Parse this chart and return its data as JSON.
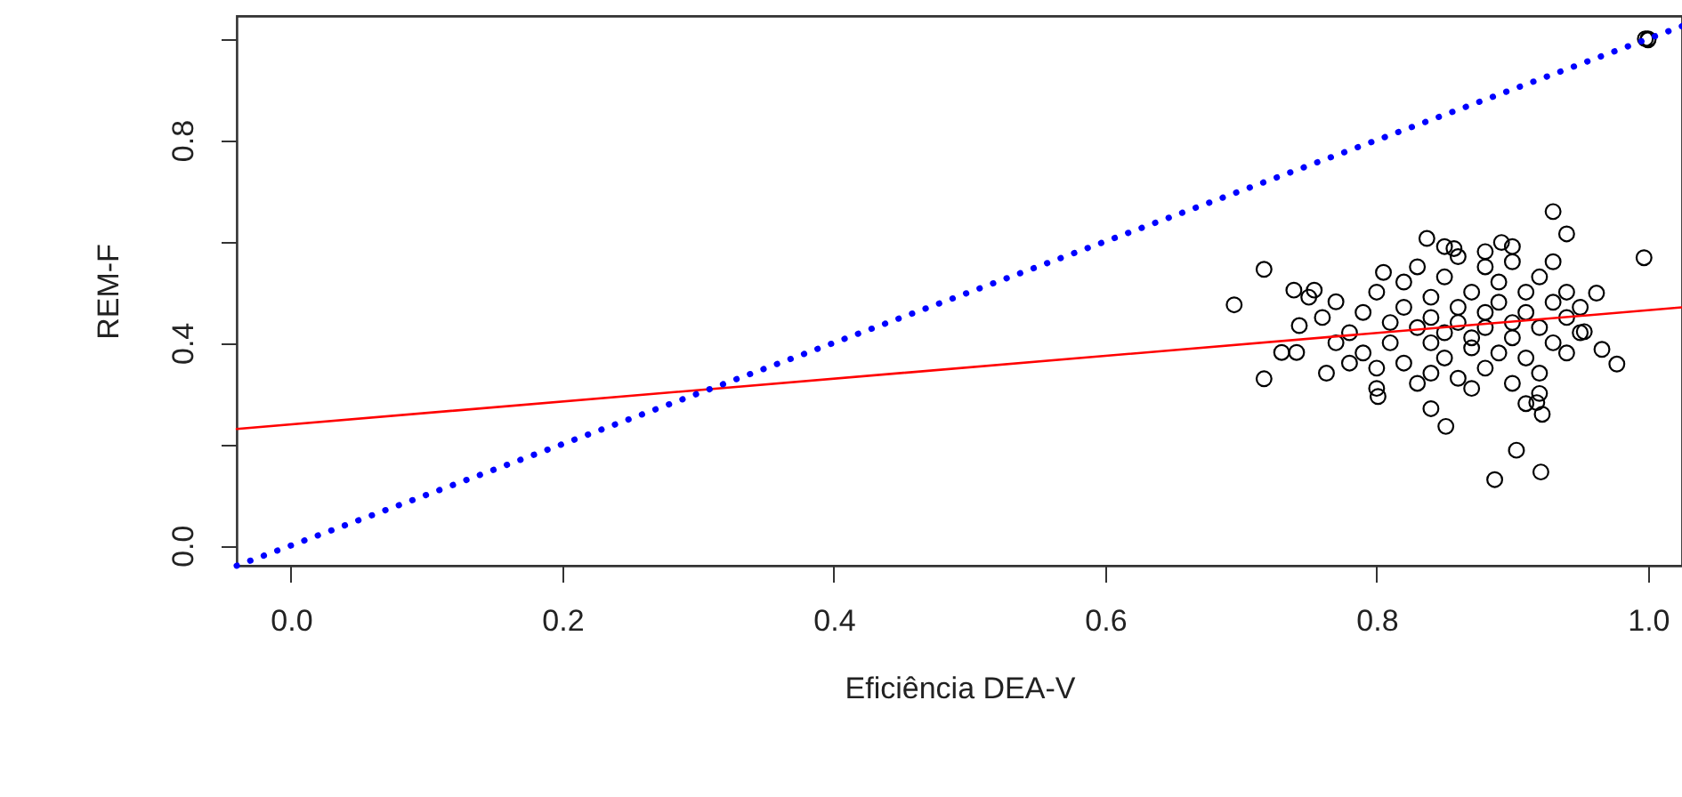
{
  "chart_data": {
    "type": "scatter",
    "xlabel": "Eficiência DEA-V",
    "ylabel": "REM-F",
    "xlim": [
      -0.04,
      1.025
    ],
    "ylim": [
      -0.04,
      1.045
    ],
    "xticks": [
      {
        "value": 0,
        "label": "0.0"
      },
      {
        "value": 0.2,
        "label": "0.2"
      },
      {
        "value": 0.4,
        "label": "0.4"
      },
      {
        "value": 0.6,
        "label": "0.6"
      },
      {
        "value": 0.8,
        "label": "0.8"
      },
      {
        "value": 1.0,
        "label": "1.0"
      }
    ],
    "yticks": [
      {
        "value": 0,
        "label": "0.0"
      },
      {
        "value": 0.2,
        "label": null
      },
      {
        "value": 0.4,
        "label": "0.4"
      },
      {
        "value": 0.6,
        "label": null
      },
      {
        "value": 0.8,
        "label": "0.8"
      },
      {
        "value": 1.0,
        "label": null
      }
    ],
    "grid": false,
    "series": [
      {
        "marker": "circle",
        "color": "#000000",
        "x": [
          0.93,
          0.837,
          0.997,
          0.717,
          0.695,
          0.717,
          0.73,
          0.741,
          0.977,
          0.966,
          0.903,
          0.887,
          0.921,
          0.851,
          0.84,
          0.801,
          0.763,
          0.739,
          0.754,
          0.805,
          0.857,
          0.892,
          0.94,
          0.962,
          0.953,
          0.922,
          0.918,
          0.743,
          0.77,
          0.78,
          0.79,
          0.79,
          0.8,
          0.8,
          0.81,
          0.81,
          0.82,
          0.82,
          0.82,
          0.83,
          0.83,
          0.83,
          0.84,
          0.84,
          0.84,
          0.85,
          0.85,
          0.85,
          0.86,
          0.86,
          0.86,
          0.86,
          0.87,
          0.87,
          0.87,
          0.88,
          0.88,
          0.88,
          0.88,
          0.89,
          0.89,
          0.89,
          0.9,
          0.9,
          0.9,
          0.9,
          0.91,
          0.91,
          0.91,
          0.92,
          0.92,
          0.92,
          0.93,
          0.93,
          0.93,
          0.94,
          0.94,
          0.94,
          0.95,
          0.95,
          0.92,
          0.91,
          0.87,
          0.84,
          0.88,
          0.9,
          0.85,
          0.76,
          0.77,
          0.75,
          0.78,
          0.8,
          1.0,
          1.0,
          0.998
        ],
        "values": [
          0.659,
          0.606,
          0.568,
          0.545,
          0.475,
          0.329,
          0.381,
          0.381,
          0.358,
          0.387,
          0.188,
          0.13,
          0.145,
          0.235,
          0.27,
          0.294,
          0.34,
          0.504,
          0.504,
          0.539,
          0.586,
          0.598,
          0.615,
          0.498,
          0.422,
          0.259,
          0.282,
          0.434,
          0.481,
          0.42,
          0.46,
          0.38,
          0.5,
          0.35,
          0.44,
          0.4,
          0.52,
          0.47,
          0.36,
          0.43,
          0.32,
          0.55,
          0.49,
          0.4,
          0.45,
          0.53,
          0.37,
          0.42,
          0.47,
          0.33,
          0.57,
          0.44,
          0.5,
          0.39,
          0.41,
          0.55,
          0.46,
          0.35,
          0.43,
          0.52,
          0.38,
          0.48,
          0.44,
          0.56,
          0.32,
          0.41,
          0.5,
          0.37,
          0.46,
          0.53,
          0.43,
          0.34,
          0.48,
          0.4,
          0.56,
          0.45,
          0.5,
          0.38,
          0.47,
          0.42,
          0.3,
          0.28,
          0.31,
          0.34,
          0.58,
          0.59,
          0.59,
          0.45,
          0.4,
          0.49,
          0.36,
          0.31,
          1.0,
          0.998,
          1.0
        ]
      },
      {
        "type": "line",
        "color": "#ff0000",
        "line_style": "solid",
        "x": [
          -0.04,
          1.025
        ],
        "values": [
          0.23,
          0.47
        ]
      },
      {
        "type": "line",
        "color": "#0000ff",
        "line_style": "dotted",
        "x": [
          -0.04,
          1.025
        ],
        "values": [
          -0.04,
          1.025
        ]
      }
    ]
  }
}
